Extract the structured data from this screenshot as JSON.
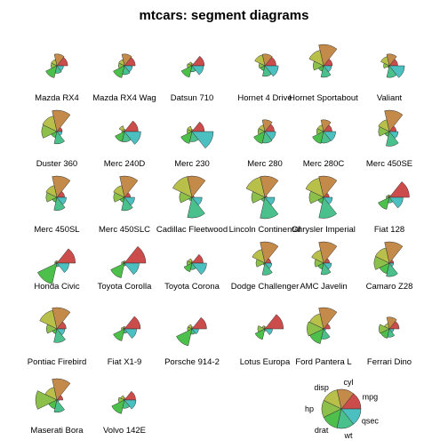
{
  "chart_data": {
    "type": "segment-star",
    "title": "mtcars: segment diagrams",
    "variables": [
      "mpg",
      "cyl",
      "disp",
      "hp",
      "drat",
      "wt",
      "qsec"
    ],
    "colors": {
      "mpg": "#cc4c4c",
      "cyl": "#c48a4a",
      "disp": "#b8c04a",
      "hp": "#8cc04a",
      "drat": "#4cc04a",
      "wt": "#4ac08c",
      "qsec": "#4cc0c0"
    },
    "key_label_visible": true,
    "cars": [
      {
        "name": "Mazda RX4",
        "values": [
          0.45,
          0.5,
          0.22,
          0.2,
          0.53,
          0.28,
          0.23
        ]
      },
      {
        "name": "Mazda RX4 Wag",
        "values": [
          0.45,
          0.5,
          0.22,
          0.2,
          0.53,
          0.35,
          0.3
        ]
      },
      {
        "name": "Datsun 710",
        "values": [
          0.53,
          0.0,
          0.09,
          0.14,
          0.5,
          0.21,
          0.49
        ]
      },
      {
        "name": "Hornet 4 Drive",
        "values": [
          0.47,
          0.5,
          0.47,
          0.2,
          0.15,
          0.44,
          0.59
        ]
      },
      {
        "name": "Hornet Sportabout",
        "values": [
          0.35,
          1.0,
          0.72,
          0.43,
          0.18,
          0.49,
          0.3
        ]
      },
      {
        "name": "Valiant",
        "values": [
          0.33,
          0.5,
          0.38,
          0.19,
          0.0,
          0.5,
          0.68
        ]
      },
      {
        "name": "Duster 360",
        "values": [
          0.17,
          1.0,
          0.72,
          0.68,
          0.21,
          0.53,
          0.16
        ]
      },
      {
        "name": "Merc 240D",
        "values": [
          0.6,
          0.0,
          0.19,
          0.03,
          0.43,
          0.43,
          0.74
        ]
      },
      {
        "name": "Merc 230",
        "values": [
          0.53,
          0.0,
          0.17,
          0.15,
          0.53,
          0.42,
          1.0
        ]
      },
      {
        "name": "Merc 280",
        "values": [
          0.38,
          0.5,
          0.24,
          0.25,
          0.53,
          0.49,
          0.45
        ]
      },
      {
        "name": "Merc 280C",
        "values": [
          0.33,
          0.5,
          0.24,
          0.25,
          0.53,
          0.49,
          0.52
        ]
      },
      {
        "name": "Merc 450SE",
        "values": [
          0.25,
          1.0,
          0.52,
          0.45,
          0.15,
          0.65,
          0.35
        ]
      },
      {
        "name": "Merc 450SL",
        "values": [
          0.29,
          1.0,
          0.52,
          0.45,
          0.15,
          0.57,
          0.38
        ]
      },
      {
        "name": "Merc 450SLC",
        "values": [
          0.2,
          1.0,
          0.52,
          0.45,
          0.15,
          0.58,
          0.42
        ]
      },
      {
        "name": "Cadillac Fleetwood",
        "values": [
          0.0,
          1.0,
          1.0,
          0.54,
          0.08,
          0.96,
          0.41
        ]
      },
      {
        "name": "Lincoln Continental",
        "values": [
          0.0,
          1.0,
          0.97,
          0.58,
          0.11,
          1.0,
          0.4
        ]
      },
      {
        "name": "Chrysler Imperial",
        "values": [
          0.18,
          1.0,
          0.92,
          0.63,
          0.21,
          0.98,
          0.35
        ]
      },
      {
        "name": "Fiat 128",
        "values": [
          0.93,
          0.0,
          0.02,
          0.05,
          0.53,
          0.18,
          0.6
        ]
      },
      {
        "name": "Honda Civic",
        "values": [
          0.85,
          0.0,
          0.01,
          0.0,
          1.0,
          0.08,
          0.52
        ]
      },
      {
        "name": "Toyota Corolla",
        "values": [
          1.0,
          0.0,
          0.0,
          0.04,
          0.68,
          0.03,
          0.65
        ]
      },
      {
        "name": "Toyota Corona",
        "values": [
          0.47,
          0.0,
          0.12,
          0.16,
          0.35,
          0.23,
          0.65
        ]
      },
      {
        "name": "Dodge Challenger",
        "values": [
          0.2,
          1.0,
          0.62,
          0.35,
          0.0,
          0.51,
          0.25
        ]
      },
      {
        "name": "AMC Javelin",
        "values": [
          0.2,
          1.0,
          0.58,
          0.35,
          0.21,
          0.49,
          0.3
        ]
      },
      {
        "name": "Camaro Z28",
        "values": [
          0.11,
          1.0,
          0.7,
          0.68,
          0.45,
          0.59,
          0.11
        ]
      },
      {
        "name": "Pontiac Firebird",
        "values": [
          0.37,
          1.0,
          0.88,
          0.43,
          0.15,
          0.6,
          0.3
        ]
      },
      {
        "name": "Fiat X1-9",
        "values": [
          0.72,
          0.0,
          0.01,
          0.05,
          0.53,
          0.12,
          0.52
        ]
      },
      {
        "name": "Porsche 914-2",
        "values": [
          0.65,
          0.0,
          0.12,
          0.13,
          0.79,
          0.17,
          0.23
        ]
      },
      {
        "name": "Lotus Europa",
        "values": [
          0.85,
          0.0,
          0.06,
          0.26,
          0.45,
          0.0,
          0.28
        ]
      },
      {
        "name": "Ford Pantera L",
        "values": [
          0.23,
          1.0,
          0.7,
          0.75,
          0.68,
          0.42,
          0.0
        ]
      },
      {
        "name": "Ferrari Dino",
        "values": [
          0.4,
          0.5,
          0.18,
          0.43,
          0.39,
          0.32,
          0.12
        ]
      },
      {
        "name": "Maserati Bora",
        "values": [
          0.2,
          1.0,
          0.57,
          1.0,
          0.36,
          0.53,
          0.0
        ]
      },
      {
        "name": "Volvo 142E",
        "values": [
          0.47,
          0.0,
          0.12,
          0.2,
          0.62,
          0.32,
          0.49
        ]
      }
    ]
  }
}
